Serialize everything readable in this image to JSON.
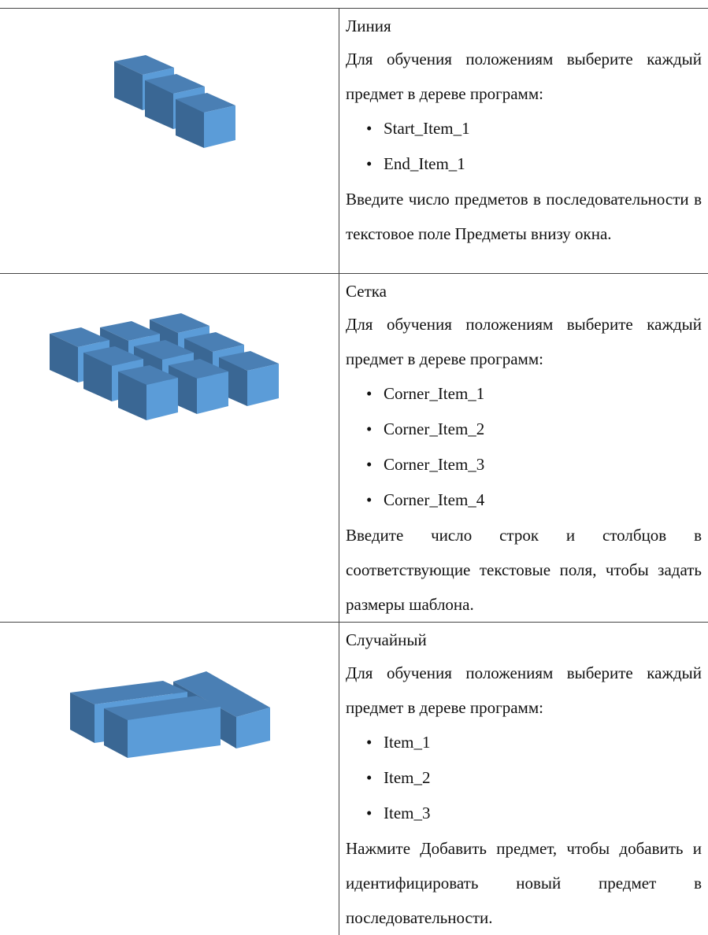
{
  "rows": [
    {
      "title": "Линия",
      "intro": "Для обучения положениям выберите каждый предмет в дереве программ:",
      "items": [
        "Start_Item_1",
        "End_Item_1"
      ],
      "note": "Введите число предметов в последовательности в текстовое поле Предметы внизу окна."
    },
    {
      "title": "Сетка",
      "intro": "Для обучения положениям выберите каждый предмет в дереве программ:",
      "items": [
        "Corner_Item_1",
        "Corner_Item_2",
        "Corner_Item_3",
        "Corner_Item_4"
      ],
      "note": "Введите число строк и столбцов в соответствующие текстовые поля, чтобы задать размеры шаблона."
    },
    {
      "title": "Случайный",
      "intro": "Для обучения положениям выберите каждый предмет в дереве программ:",
      "items": [
        "Item_1",
        "Item_2",
        "Item_3"
      ],
      "note": "Нажмите Добавить предмет, чтобы добавить и идентифицировать новый предмет в последовательности."
    }
  ]
}
